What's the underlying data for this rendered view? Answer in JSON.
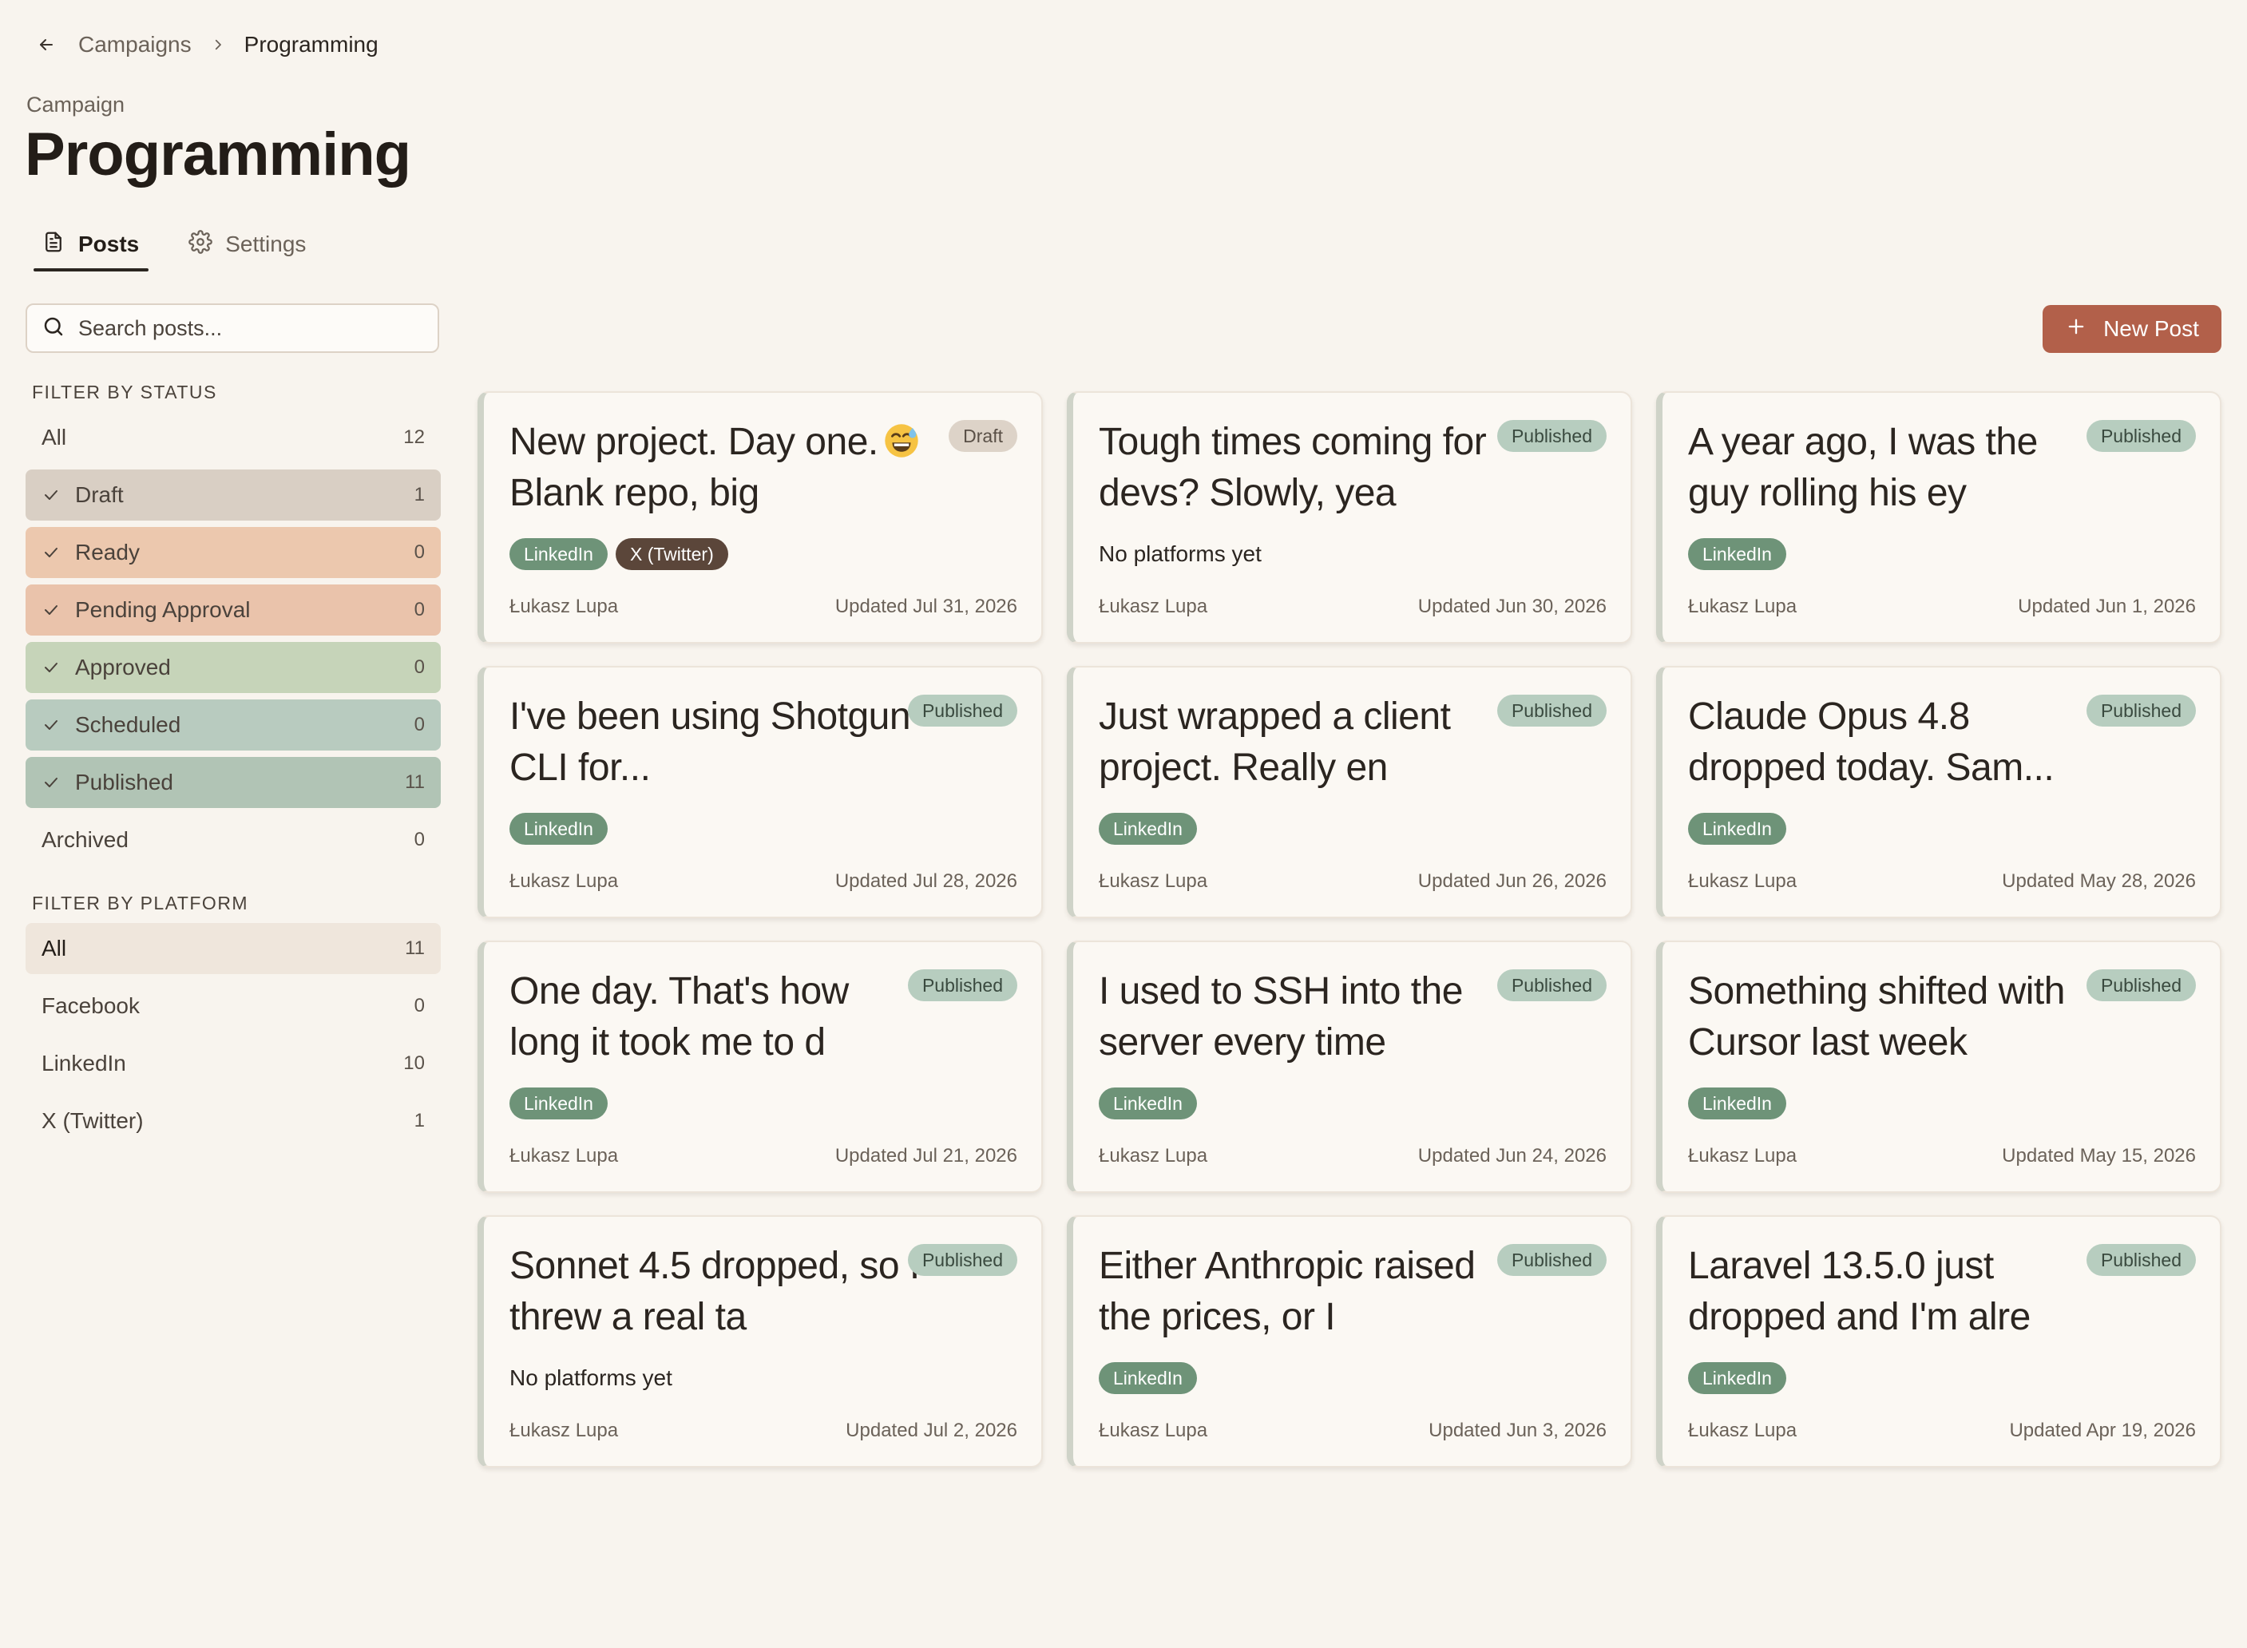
{
  "breadcrumb": {
    "parent": "Campaigns",
    "current": "Programming"
  },
  "header": {
    "eyebrow": "Campaign",
    "title": "Programming"
  },
  "tabs": [
    {
      "label": "Posts",
      "icon": "document-icon",
      "active": true
    },
    {
      "label": "Settings",
      "icon": "gear-icon",
      "active": false
    }
  ],
  "search": {
    "placeholder": "Search posts..."
  },
  "new_post": {
    "label": "New Post"
  },
  "colors": {
    "accent": "#b2604a",
    "draft": "#d9cfc4",
    "ready": "#ecc8ae",
    "pending": "#eac3ab",
    "approved": "#c6d4b9",
    "scheduled": "#b8cbbf",
    "published": "#b1c4b5",
    "platform_all": "#efe6dc",
    "linkedin_tag": "#6e9378",
    "x_tag": "#5b463a"
  },
  "status_filter": {
    "title": "FILTER BY STATUS",
    "items": [
      {
        "label": "All",
        "count": "12",
        "checked": false,
        "color": ""
      },
      {
        "label": "Draft",
        "count": "1",
        "checked": true,
        "color": "#d9cfc4"
      },
      {
        "label": "Ready",
        "count": "0",
        "checked": true,
        "color": "#ecc8ae"
      },
      {
        "label": "Pending Approval",
        "count": "0",
        "checked": true,
        "color": "#eac3ab"
      },
      {
        "label": "Approved",
        "count": "0",
        "checked": true,
        "color": "#c6d4b9"
      },
      {
        "label": "Scheduled",
        "count": "0",
        "checked": true,
        "color": "#b8cbbf"
      },
      {
        "label": "Published",
        "count": "11",
        "checked": true,
        "color": "#b1c4b5"
      },
      {
        "label": "Archived",
        "count": "0",
        "checked": false,
        "color": ""
      }
    ]
  },
  "platform_filter": {
    "title": "FILTER BY PLATFORM",
    "items": [
      {
        "label": "All",
        "count": "11",
        "selected": true
      },
      {
        "label": "Facebook",
        "count": "0",
        "selected": false
      },
      {
        "label": "LinkedIn",
        "count": "10",
        "selected": false
      },
      {
        "label": "X (Twitter)",
        "count": "1",
        "selected": false
      }
    ]
  },
  "posts": [
    {
      "title": "New project. Day one.",
      "emoji": "grinning-sweat-emoji",
      "title_tail": "Blank repo, big",
      "status": "Draft",
      "platforms": [
        "LinkedIn",
        "X (Twitter)"
      ],
      "no_platforms": "",
      "author": "Łukasz Lupa",
      "updated": "Updated Jul 31, 2026"
    },
    {
      "title": "Tough times coming for devs? Slowly, yea",
      "emoji": "",
      "title_tail": "",
      "status": "Published",
      "platforms": [],
      "no_platforms": "No platforms yet",
      "author": "Łukasz Lupa",
      "updated": "Updated Jun 30, 2026"
    },
    {
      "title": "A year ago, I was the guy rolling his ey",
      "emoji": "",
      "title_tail": "",
      "status": "Published",
      "platforms": [
        "LinkedIn"
      ],
      "no_platforms": "",
      "author": "Łukasz Lupa",
      "updated": "Updated Jun 1, 2026"
    },
    {
      "title": "I've been using Shotgun CLI for...",
      "emoji": "",
      "title_tail": "",
      "status": "Published",
      "platforms": [
        "LinkedIn"
      ],
      "no_platforms": "",
      "author": "Łukasz Lupa",
      "updated": "Updated Jul 28, 2026"
    },
    {
      "title": "Just wrapped a client project. Really en",
      "emoji": "",
      "title_tail": "",
      "status": "Published",
      "platforms": [
        "LinkedIn"
      ],
      "no_platforms": "",
      "author": "Łukasz Lupa",
      "updated": "Updated Jun 26, 2026"
    },
    {
      "title": "Claude Opus 4.8 dropped today. Sam...",
      "emoji": "",
      "title_tail": "",
      "status": "Published",
      "platforms": [
        "LinkedIn"
      ],
      "no_platforms": "",
      "author": "Łukasz Lupa",
      "updated": "Updated May 28, 2026"
    },
    {
      "title": "One day. That's how long it took me to d",
      "emoji": "",
      "title_tail": "",
      "status": "Published",
      "platforms": [
        "LinkedIn"
      ],
      "no_platforms": "",
      "author": "Łukasz Lupa",
      "updated": "Updated Jul 21, 2026"
    },
    {
      "title": "I used to SSH into the server every time",
      "emoji": "",
      "title_tail": "",
      "status": "Published",
      "platforms": [
        "LinkedIn"
      ],
      "no_platforms": "",
      "author": "Łukasz Lupa",
      "updated": "Updated Jun 24, 2026"
    },
    {
      "title": "Something shifted with Cursor last week",
      "emoji": "",
      "title_tail": "",
      "status": "Published",
      "platforms": [
        "LinkedIn"
      ],
      "no_platforms": "",
      "author": "Łukasz Lupa",
      "updated": "Updated May 15, 2026"
    },
    {
      "title": "Sonnet 4.5 dropped, so I threw a real ta",
      "emoji": "",
      "title_tail": "",
      "status": "Published",
      "platforms": [],
      "no_platforms": "No platforms yet",
      "author": "Łukasz Lupa",
      "updated": "Updated Jul 2, 2026"
    },
    {
      "title": "Either Anthropic raised the prices, or I",
      "emoji": "",
      "title_tail": "",
      "status": "Published",
      "platforms": [
        "LinkedIn"
      ],
      "no_platforms": "",
      "author": "Łukasz Lupa",
      "updated": "Updated Jun 3, 2026"
    },
    {
      "title": "Laravel 13.5.0 just dropped and I'm alre",
      "emoji": "",
      "title_tail": "",
      "status": "Published",
      "platforms": [
        "LinkedIn"
      ],
      "no_platforms": "",
      "author": "Łukasz Lupa",
      "updated": "Updated Apr 19, 2026"
    }
  ]
}
